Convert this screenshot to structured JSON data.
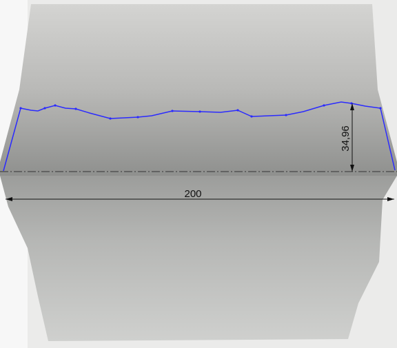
{
  "dimensions": {
    "height": "34,96",
    "width": "200"
  }
}
